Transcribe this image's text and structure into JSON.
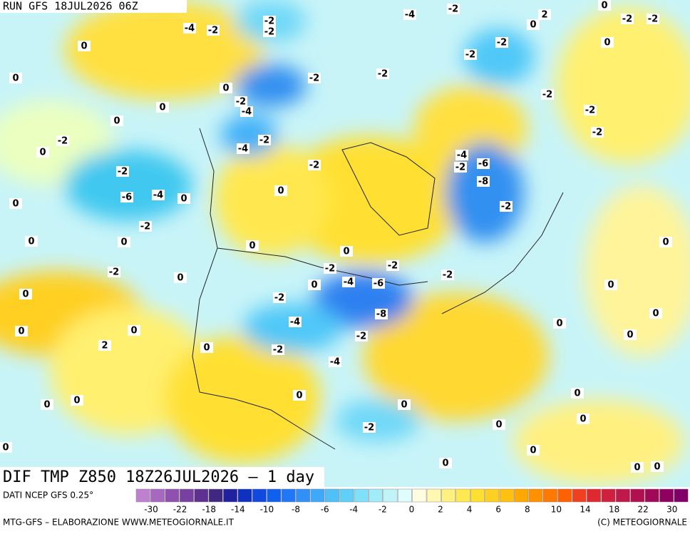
{
  "header": {
    "run": "RUN GFS 18JUL2026 06Z"
  },
  "map": {
    "title": "DIF TMP Z850 18Z26JUL2026 – 1 day",
    "contour_labels": [
      -2,
      -2,
      -4,
      -2,
      -4,
      -2,
      0,
      -2,
      -2,
      0,
      2,
      0,
      -2,
      -2,
      0,
      0,
      -2,
      -2,
      0,
      -2,
      -4,
      -2,
      -2,
      -2,
      0,
      0,
      -2,
      0,
      -2,
      -4,
      -2,
      -4,
      -6,
      -2,
      -8,
      -2,
      -6,
      -4,
      0,
      0,
      0,
      -2,
      -2,
      0,
      0,
      0,
      0,
      -2,
      -2,
      -2,
      -2,
      0,
      -4,
      -6,
      -2,
      0,
      0,
      -8,
      -4,
      -2,
      0,
      0,
      2,
      0,
      -2,
      -4,
      0,
      0,
      0,
      -2,
      0,
      0,
      0,
      0,
      0,
      0,
      0,
      0,
      0,
      0,
      0,
      0,
      0,
      0
    ]
  },
  "legend": {
    "source": "DATI NCEP GFS 0.25°",
    "ticks": [
      -30,
      -22,
      -18,
      -14,
      -10,
      -8,
      -6,
      -4,
      -2,
      0,
      2,
      4,
      6,
      8,
      10,
      14,
      18,
      22,
      30
    ]
  },
  "footer": {
    "credit": "MTG-GFS – ELABORAZIONE WWW.METEOGIORNALE.IT",
    "copyright": "(C) METEOGIORNALE"
  }
}
